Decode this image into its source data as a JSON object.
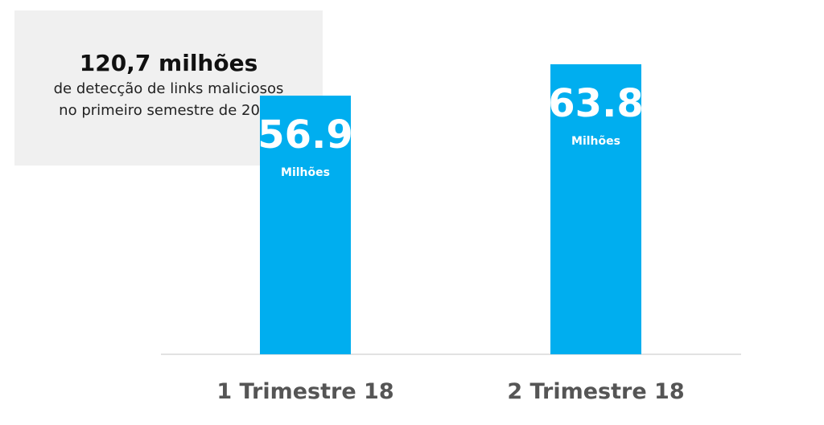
{
  "info": {
    "headline": "120,7 milhões",
    "line1": "de detecção de links maliciosos",
    "line2": "no primeiro semestre de 2018"
  },
  "chart_data": {
    "type": "bar",
    "categories": [
      "1 Trimestre 18",
      "2 Trimestre 18"
    ],
    "values": [
      56.9,
      63.8
    ],
    "value_labels": [
      "56.9",
      "63.8"
    ],
    "unit_label": "Milhões",
    "title": "",
    "xlabel": "",
    "ylabel": "",
    "grid": false,
    "bar_color": "#00aeef",
    "axis_color": "#d9d9d9"
  }
}
